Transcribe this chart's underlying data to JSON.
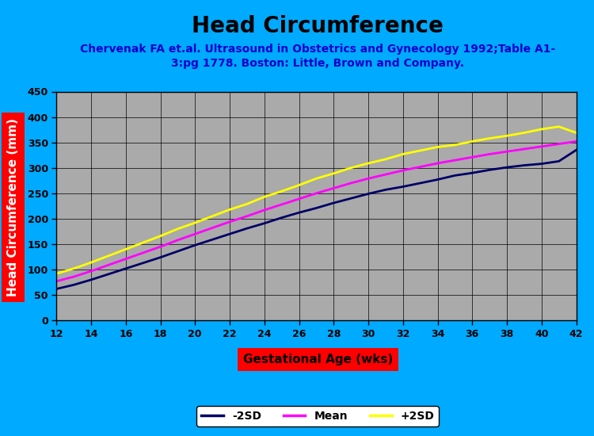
{
  "title": "Head Circumference",
  "subtitle": "Chervenak FA et.al. Ultrasound in Obstetrics and Gynecology 1992;Table A1-\n3:pg 1778. Boston: Little, Brown and Company.",
  "xlabel": "Gestational Age (wks)",
  "ylabel": "Head Circumference (mm)",
  "background_color": "#00aaff",
  "plot_bg_color": "#aaaaaa",
  "title_color": "#000000",
  "subtitle_color": "#0000cc",
  "xlabel_bg": "#ff0000",
  "ylabel_bg": "#ff0000",
  "xlim": [
    12,
    42
  ],
  "ylim": [
    0,
    450
  ],
  "xticks": [
    12,
    14,
    16,
    18,
    20,
    22,
    24,
    26,
    28,
    30,
    32,
    34,
    36,
    38,
    40,
    42
  ],
  "yticks": [
    0,
    50,
    100,
    150,
    200,
    250,
    300,
    350,
    400,
    450
  ],
  "gestational_age": [
    12,
    13,
    14,
    15,
    16,
    17,
    18,
    19,
    20,
    21,
    22,
    23,
    24,
    25,
    26,
    27,
    28,
    29,
    30,
    31,
    32,
    33,
    34,
    35,
    36,
    37,
    38,
    39,
    40,
    41,
    42
  ],
  "mean": [
    77,
    86,
    97,
    109,
    121,
    133,
    145,
    158,
    170,
    182,
    194,
    205,
    217,
    228,
    239,
    250,
    260,
    270,
    279,
    287,
    295,
    302,
    309,
    315,
    321,
    327,
    332,
    337,
    342,
    347,
    352
  ],
  "minus2sd": [
    62,
    70,
    80,
    91,
    102,
    113,
    124,
    136,
    148,
    159,
    170,
    181,
    191,
    202,
    212,
    221,
    231,
    240,
    249,
    257,
    263,
    270,
    277,
    285,
    290,
    296,
    301,
    305,
    308,
    313,
    335
  ],
  "plus2sd": [
    92,
    102,
    114,
    127,
    140,
    153,
    166,
    180,
    192,
    205,
    218,
    229,
    243,
    254,
    266,
    279,
    289,
    300,
    309,
    317,
    327,
    334,
    341,
    345,
    352,
    358,
    363,
    369,
    376,
    381,
    369
  ],
  "line_colors": {
    "minus2sd": "#000066",
    "mean": "#ff00ff",
    "plus2sd": "#ffff00"
  },
  "line_widths": {
    "minus2sd": 2.0,
    "mean": 2.0,
    "plus2sd": 2.0
  },
  "legend_labels": [
    "-2SD",
    "Mean",
    "+2SD"
  ],
  "title_fontsize": 20,
  "subtitle_fontsize": 10,
  "axis_label_fontsize": 11,
  "tick_fontsize": 9,
  "legend_fontsize": 10
}
